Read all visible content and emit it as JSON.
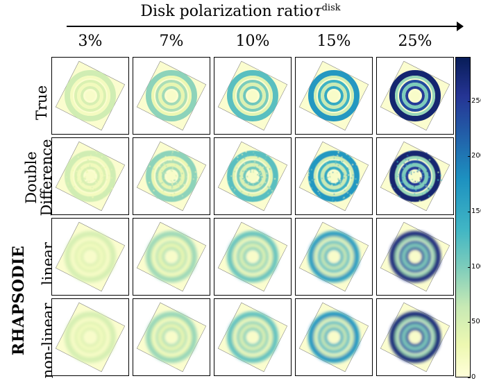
{
  "header": {
    "title": "Disk polarization ratio ",
    "tau": "τ",
    "tau_sup": "disk"
  },
  "columns": [
    "3%",
    "7%",
    "10%",
    "15%",
    "25%"
  ],
  "rows": [
    {
      "label_lines": [
        "True"
      ],
      "style": "clean",
      "intensities": [
        0.22,
        0.35,
        0.45,
        0.6,
        0.95
      ]
    },
    {
      "label_lines": [
        "Double",
        "Difference"
      ],
      "style": "noisy",
      "intensities": [
        0.22,
        0.35,
        0.45,
        0.6,
        0.95
      ]
    },
    {
      "label_lines": [
        "linear"
      ],
      "style": "smooth",
      "intensities": [
        0.2,
        0.32,
        0.42,
        0.58,
        0.92
      ]
    },
    {
      "label_lines": [
        "non-linear"
      ],
      "style": "smooth",
      "intensities": [
        0.2,
        0.33,
        0.43,
        0.6,
        0.93
      ]
    }
  ],
  "group_label": "RHAPSODIE",
  "colorbar": {
    "ticks": [
      "0",
      "50",
      "100",
      "150",
      "200",
      "250"
    ],
    "tick_values": [
      0,
      50,
      100,
      150,
      200,
      250
    ],
    "max": 290,
    "colors": [
      "#ffffd9",
      "#edf8b1",
      "#c7e9b4",
      "#7fcdbb",
      "#41b6c4",
      "#1d91c0",
      "#225ea8",
      "#253494",
      "#081d58"
    ]
  }
}
